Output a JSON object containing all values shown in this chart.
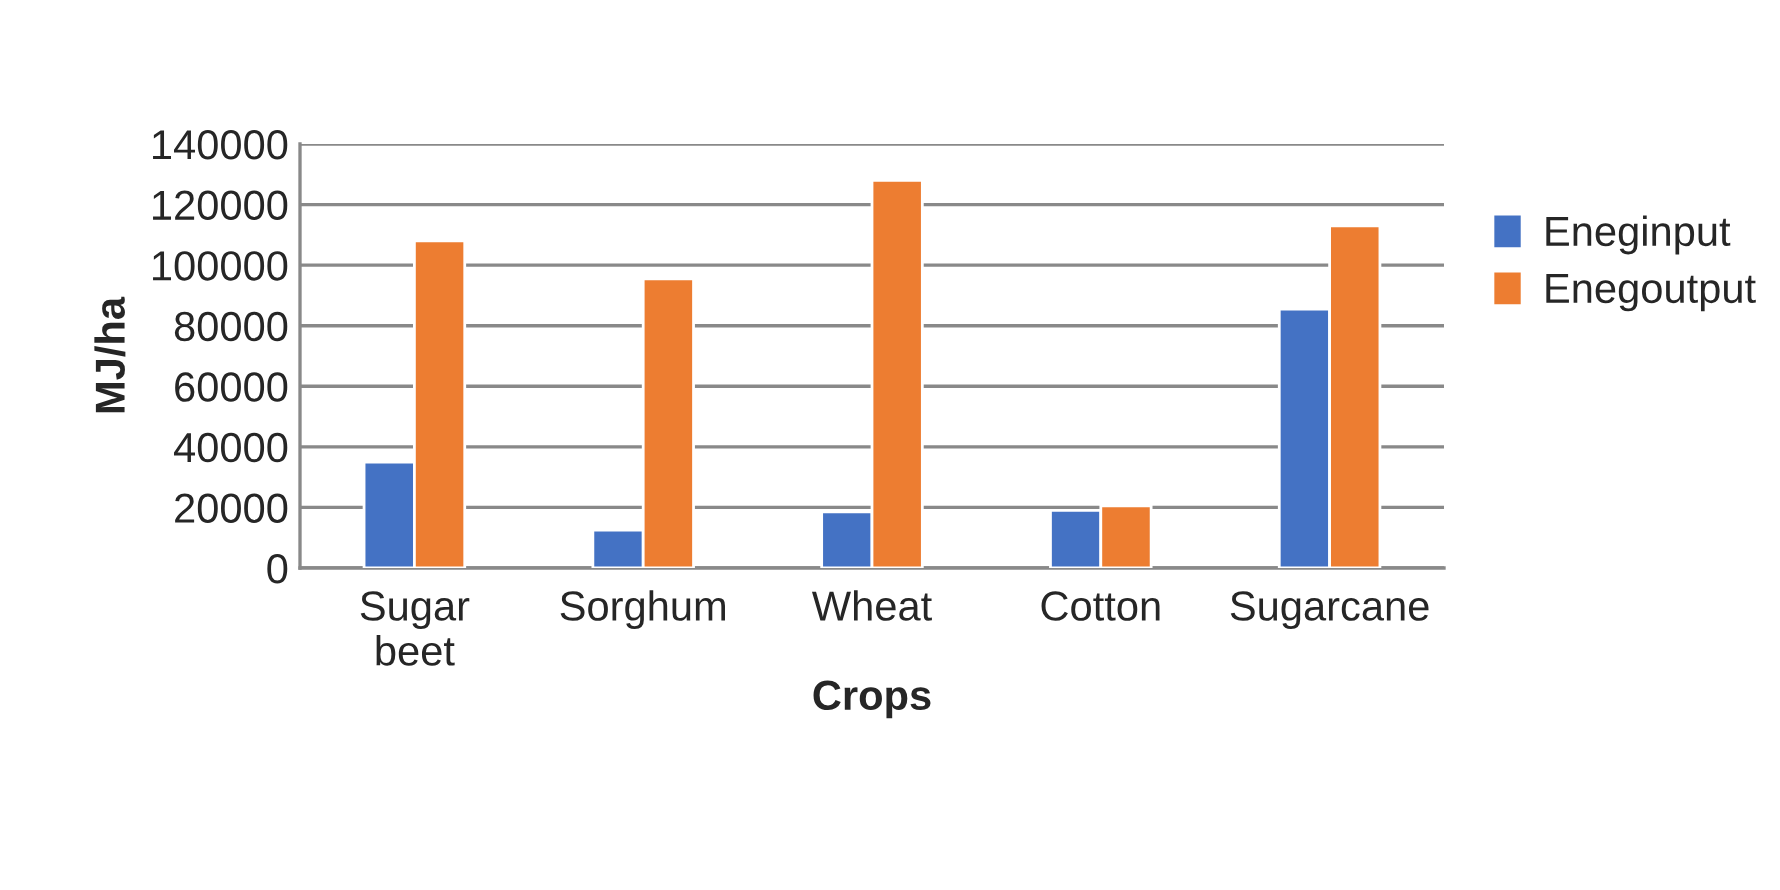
{
  "chart_data": {
    "type": "bar",
    "xlabel": "Crops",
    "ylabel": "MJ/ha",
    "categories": [
      "Sugar beet",
      "Sorghum",
      "Wheat",
      "Cotton",
      "Sugarcane"
    ],
    "series": [
      {
        "name": "Eneginput",
        "color": "#4472c4",
        "values": [
          35000,
          12500,
          18500,
          19000,
          85500
        ]
      },
      {
        "name": "Enegoutput",
        "color": "#ed7d31",
        "values": [
          108000,
          95500,
          128000,
          20500,
          113000
        ]
      }
    ],
    "ylim": [
      0,
      140000
    ],
    "yticks": [
      0,
      20000,
      40000,
      60000,
      80000,
      100000,
      120000,
      140000
    ],
    "grid": "y",
    "legend": "right"
  }
}
